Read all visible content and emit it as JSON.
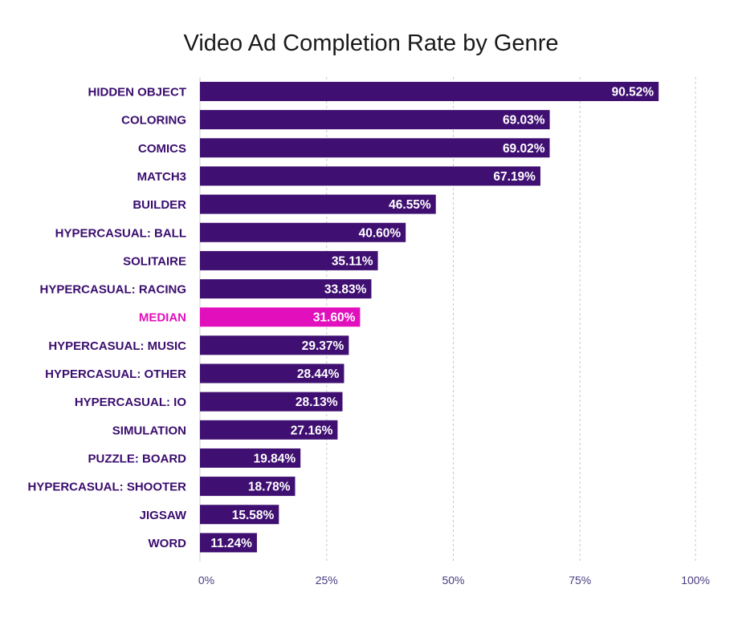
{
  "colors": {
    "bar": "#3f0f71",
    "highlight": "#e20fbd",
    "label": "#3a0d6e",
    "tick": "#4a3d80",
    "grid": "#c8c8c8"
  },
  "chart_data": {
    "type": "bar",
    "orientation": "horizontal",
    "title": "Video Ad Completion Rate by Genre",
    "xlim": [
      0,
      100
    ],
    "ticks": [
      0,
      25,
      50,
      75,
      100
    ],
    "tick_labels": [
      "0%",
      "25%",
      "50%",
      "75%",
      "100%"
    ],
    "grid": "vertical dashed",
    "highlight_category": "MEDIAN",
    "categories": [
      "HIDDEN OBJECT",
      "COLORING",
      "COMICS",
      "MATCH3",
      "BUILDER",
      "HYPERCASUAL: BALL",
      "SOLITAIRE",
      "HYPERCASUAL: RACING",
      "MEDIAN",
      "HYPERCASUAL: MUSIC",
      "HYPERCASUAL: OTHER",
      "HYPERCASUAL: IO",
      "SIMULATION",
      "PUZZLE: BOARD",
      "HYPERCASUAL: SHOOTER",
      "JIGSAW",
      "WORD"
    ],
    "values": [
      90.52,
      69.03,
      69.02,
      67.19,
      46.55,
      40.6,
      35.11,
      33.83,
      31.6,
      29.37,
      28.44,
      28.13,
      27.16,
      19.84,
      18.78,
      15.58,
      11.24
    ],
    "value_labels": [
      "90.52%",
      "69.03%",
      "69.02%",
      "67.19%",
      "46.55%",
      "40.60%",
      "35.11%",
      "33.83%",
      "31.60%",
      "29.37%",
      "28.44%",
      "28.13%",
      "27.16%",
      "19.84%",
      "18.78%",
      "15.58%",
      "11.24%"
    ]
  }
}
